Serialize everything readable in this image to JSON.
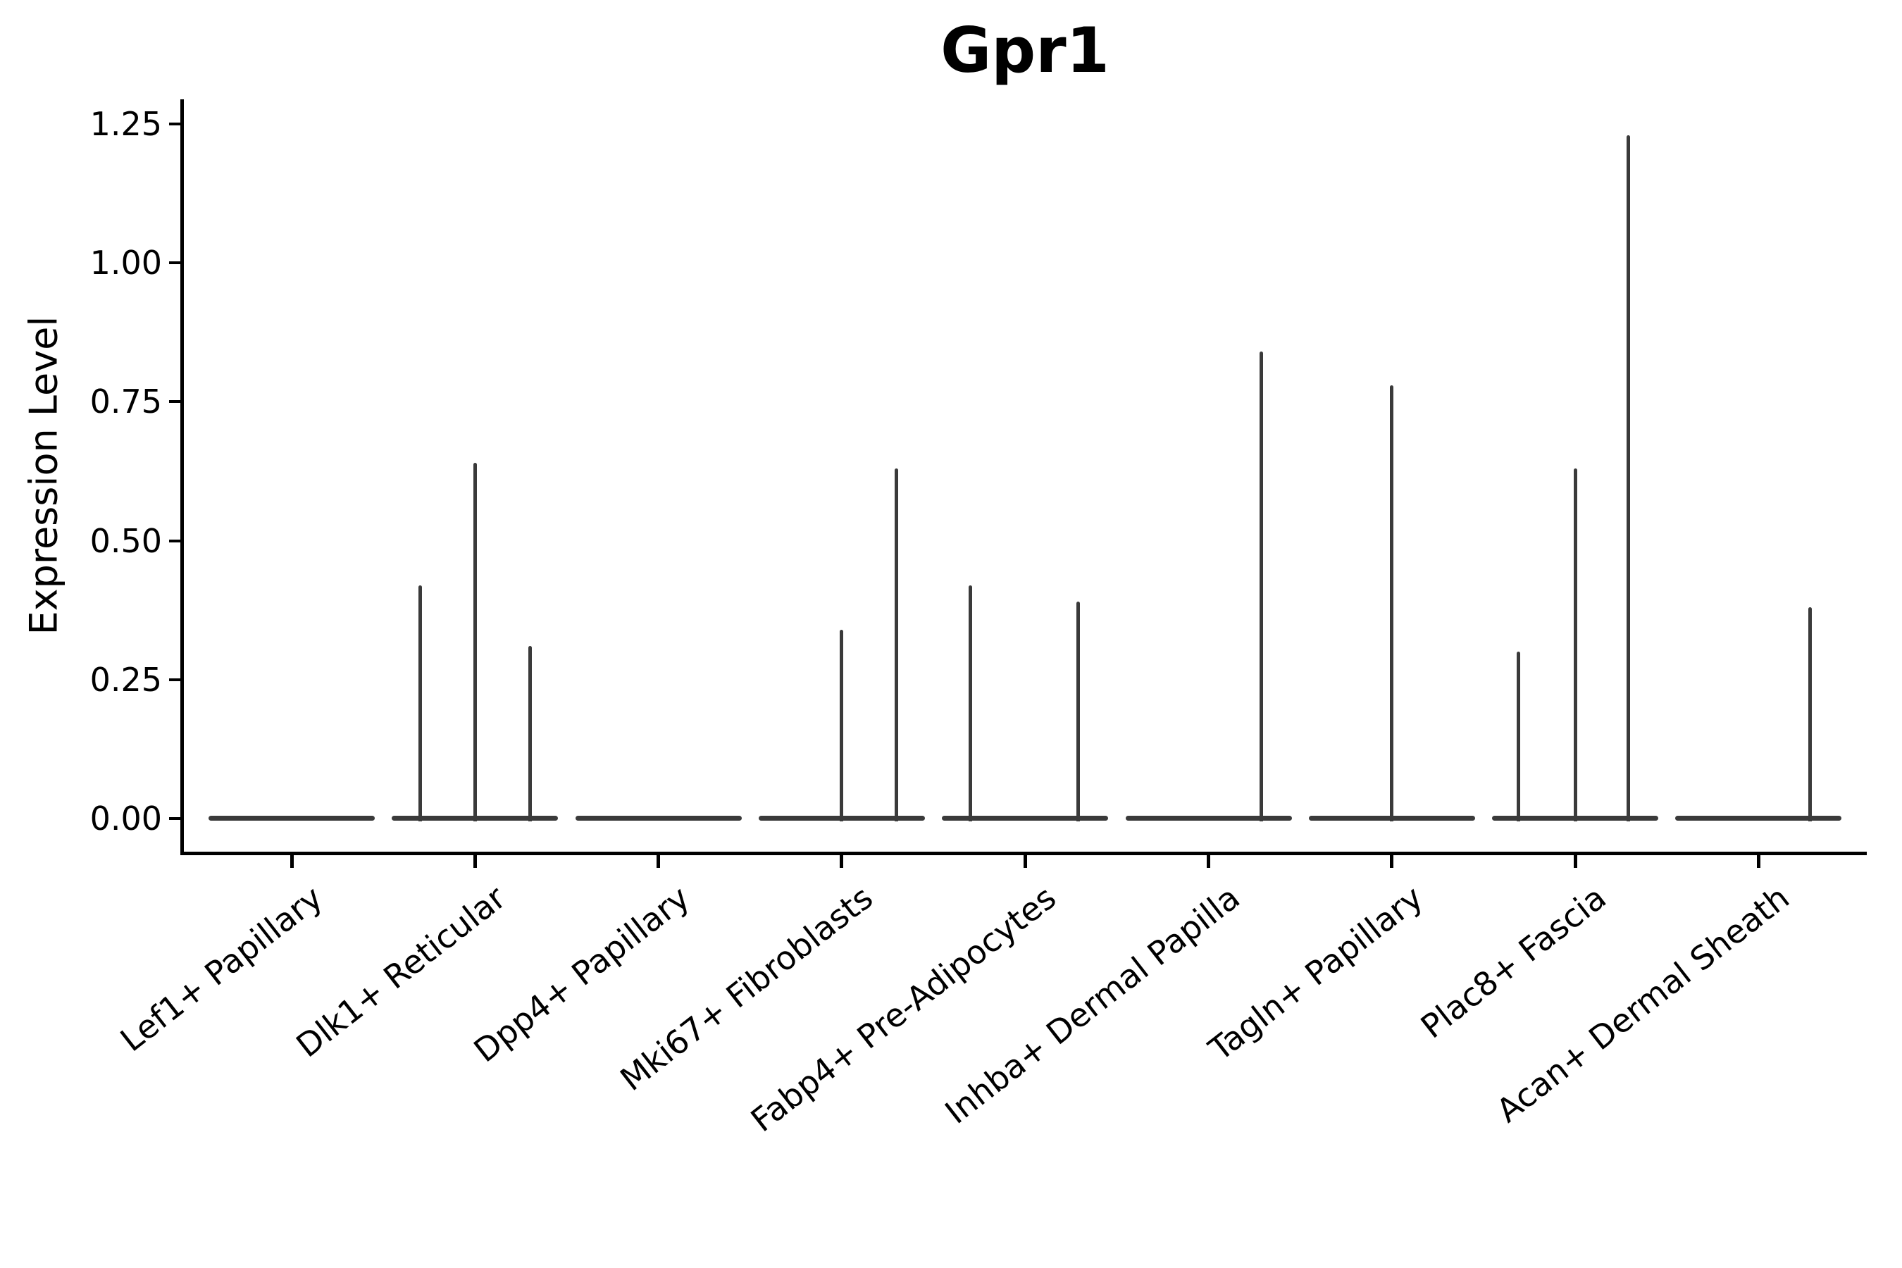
{
  "title": "Gpr1",
  "axes": {
    "ylabel": "Expression Level",
    "xlabel": ""
  },
  "colors": {
    "violin": "#3a3a3a",
    "axis": "#000000",
    "text": "#000000",
    "background": "#ffffff"
  },
  "chart_data": {
    "type": "violin",
    "title": "Gpr1",
    "xlabel": "",
    "ylabel": "Expression Level",
    "ylim": [
      0,
      1.25
    ],
    "grid": false,
    "legend": null,
    "xtick_rotation_deg": 38,
    "ytick_values": [
      0,
      0.25,
      0.5,
      0.75,
      1.0,
      1.25
    ],
    "ytick_labels": [
      "0.00",
      "0.25",
      "0.50",
      "0.75",
      "1.00",
      "1.25"
    ],
    "categories": [
      "Lef1+ Papillary",
      "Dlk1+ Reticular",
      "Dpp4+ Papillary",
      "Mki67+ Fibroblasts",
      "Fabp4+ Pre-Adipocytes",
      "Inhba+ Dermal Papilla",
      "Tagln+ Papillary",
      "Plac8+ Fascia",
      "Acan+ Dermal Sheath"
    ],
    "baseline_value": 0,
    "baseline_halfwidth_frac": 0.45,
    "series": [
      {
        "category": "Lef1+ Papillary",
        "baseline": 0,
        "spikes": []
      },
      {
        "category": "Dlk1+ Reticular",
        "baseline": 0,
        "spikes": [
          {
            "pos": -0.3,
            "value": 0.42
          },
          {
            "pos": 0.0,
            "value": 0.64
          },
          {
            "pos": 0.3,
            "value": 0.31
          }
        ]
      },
      {
        "category": "Dpp4+ Papillary",
        "baseline": 0,
        "spikes": []
      },
      {
        "category": "Mki67+ Fibroblasts",
        "baseline": 0,
        "spikes": [
          {
            "pos": 0.0,
            "value": 0.34
          },
          {
            "pos": 0.3,
            "value": 0.63
          }
        ]
      },
      {
        "category": "Fabp4+ Pre-Adipocytes",
        "baseline": 0,
        "spikes": [
          {
            "pos": -0.3,
            "value": 0.42
          },
          {
            "pos": 0.29,
            "value": 0.39
          }
        ]
      },
      {
        "category": "Inhba+ Dermal Papilla",
        "baseline": 0,
        "spikes": [
          {
            "pos": 0.29,
            "value": 0.84
          }
        ]
      },
      {
        "category": "Tagln+ Papillary",
        "baseline": 0,
        "spikes": [
          {
            "pos": 0.0,
            "value": 0.78
          }
        ]
      },
      {
        "category": "Plac8+ Fascia",
        "baseline": 0,
        "spikes": [
          {
            "pos": -0.31,
            "value": 0.3
          },
          {
            "pos": 0.0,
            "value": 0.63
          },
          {
            "pos": 0.29,
            "value": 1.23
          }
        ]
      },
      {
        "category": "Acan+ Dermal Sheath",
        "baseline": 0,
        "spikes": [
          {
            "pos": 0.28,
            "value": 0.38
          }
        ]
      }
    ]
  }
}
